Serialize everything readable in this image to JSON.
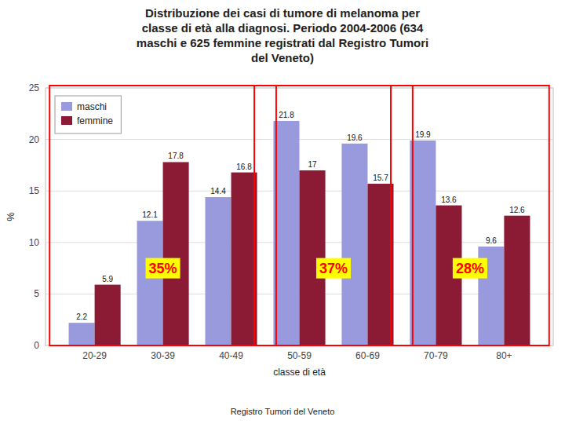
{
  "chart_data": {
    "type": "bar",
    "title": "Distribuzione dei casi di tumore di melanoma per\nclasse di età alla diagnosi. Periodo 2004-2006 (634\nmaschi e 625 femmine registrati dal Registro Tumori\ndel Veneto)",
    "categories": [
      "20-29",
      "30-39",
      "40-49",
      "50-59",
      "60-69",
      "70-79",
      "80+"
    ],
    "series": [
      {
        "name": "maschi",
        "color": "#9999DD",
        "values": [
          2.2,
          12.1,
          14.4,
          21.8,
          19.6,
          19.9,
          9.6
        ]
      },
      {
        "name": "femmine",
        "color": "#8B1A35",
        "values": [
          5.9,
          17.8,
          16.8,
          17.0,
          15.7,
          13.6,
          12.6
        ]
      }
    ],
    "xlabel": "classe di età",
    "ylabel": "%",
    "ylim": [
      0,
      25
    ],
    "yticks": [
      0,
      5,
      10,
      15,
      20,
      25
    ],
    "grid": true,
    "legend": "upper left",
    "data_labels": true,
    "annotations": [
      {
        "text": "35%",
        "categories": [
          "20-29",
          "30-39",
          "40-49"
        ]
      },
      {
        "text": "37%",
        "categories": [
          "50-59",
          "60-69"
        ]
      },
      {
        "text": "28%",
        "categories": [
          "70-79",
          "80+"
        ]
      }
    ],
    "footer": "Registro Tumori del Veneto"
  }
}
